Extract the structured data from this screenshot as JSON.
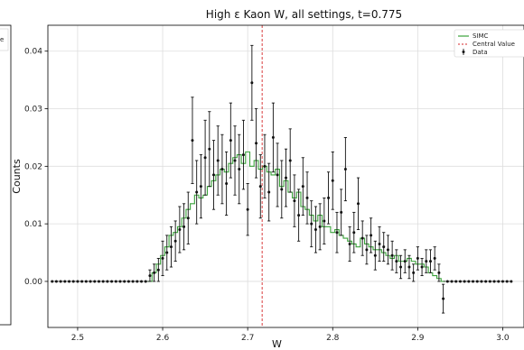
{
  "chart_data": {
    "type": "line",
    "title": "High ε Kaon W, all settings, t=0.775",
    "xlabel": "W",
    "ylabel": "Counts",
    "xlim": [
      2.465,
      3.025
    ],
    "ylim": [
      -0.008,
      0.0445
    ],
    "x_ticks": [
      2.5,
      2.6,
      2.7,
      2.8,
      2.9,
      3.0
    ],
    "x_tick_labels": [
      "2.5",
      "2.6",
      "2.7",
      "2.8",
      "2.9",
      "3.0"
    ],
    "y_ticks": [
      0.0,
      0.01,
      0.02,
      0.03,
      0.04
    ],
    "y_tick_labels": [
      "0.00",
      "0.01",
      "0.02",
      "0.03",
      "0.04"
    ],
    "grid": true,
    "legend_position": "top-right",
    "central_value": 2.717,
    "colors": {
      "simc": "#3aa23a",
      "data": "#111111",
      "central": "#d62728",
      "grid": "#dddddd"
    },
    "series": [
      {
        "name": "SIMC",
        "kind": "step",
        "x": [
          2.585,
          2.59,
          2.595,
          2.6,
          2.605,
          2.61,
          2.615,
          2.62,
          2.625,
          2.63,
          2.635,
          2.64,
          2.645,
          2.65,
          2.655,
          2.66,
          2.665,
          2.67,
          2.675,
          2.68,
          2.685,
          2.69,
          2.695,
          2.7,
          2.705,
          2.71,
          2.715,
          2.72,
          2.725,
          2.73,
          2.735,
          2.74,
          2.745,
          2.75,
          2.755,
          2.76,
          2.765,
          2.77,
          2.775,
          2.78,
          2.785,
          2.79,
          2.795,
          2.8,
          2.805,
          2.81,
          2.815,
          2.82,
          2.825,
          2.83,
          2.835,
          2.84,
          2.845,
          2.85,
          2.855,
          2.86,
          2.865,
          2.87,
          2.875,
          2.88,
          2.885,
          2.89,
          2.895,
          2.9,
          2.905,
          2.91,
          2.915,
          2.92,
          2.925,
          2.93
        ],
        "values": [
          0.0,
          0.0015,
          0.003,
          0.0045,
          0.006,
          0.008,
          0.0085,
          0.0095,
          0.011,
          0.0125,
          0.0135,
          0.015,
          0.0145,
          0.015,
          0.0165,
          0.0175,
          0.0185,
          0.0195,
          0.019,
          0.0205,
          0.0215,
          0.022,
          0.0205,
          0.0225,
          0.02,
          0.021,
          0.0195,
          0.02,
          0.019,
          0.0185,
          0.0195,
          0.0165,
          0.0175,
          0.0155,
          0.0145,
          0.0155,
          0.013,
          0.0125,
          0.0115,
          0.0105,
          0.0115,
          0.0095,
          0.0095,
          0.0085,
          0.009,
          0.008,
          0.0075,
          0.007,
          0.0065,
          0.006,
          0.0075,
          0.0065,
          0.006,
          0.0055,
          0.0055,
          0.005,
          0.0045,
          0.004,
          0.0045,
          0.0035,
          0.0035,
          0.004,
          0.0035,
          0.003,
          0.003,
          0.0025,
          0.0015,
          0.001,
          0.0005,
          0.0
        ]
      },
      {
        "name": "Central Value",
        "kind": "vline",
        "x": 2.717
      },
      {
        "name": "Data",
        "kind": "errorbar",
        "x": [
          2.47,
          2.475,
          2.48,
          2.485,
          2.49,
          2.495,
          2.5,
          2.505,
          2.51,
          2.515,
          2.52,
          2.525,
          2.53,
          2.535,
          2.54,
          2.545,
          2.55,
          2.555,
          2.56,
          2.565,
          2.57,
          2.575,
          2.58,
          2.585,
          2.59,
          2.595,
          2.6,
          2.605,
          2.61,
          2.615,
          2.62,
          2.625,
          2.63,
          2.635,
          2.64,
          2.645,
          2.65,
          2.655,
          2.66,
          2.665,
          2.67,
          2.675,
          2.68,
          2.685,
          2.69,
          2.695,
          2.7,
          2.705,
          2.71,
          2.715,
          2.72,
          2.725,
          2.73,
          2.735,
          2.74,
          2.745,
          2.75,
          2.755,
          2.76,
          2.765,
          2.77,
          2.775,
          2.78,
          2.785,
          2.79,
          2.795,
          2.8,
          2.805,
          2.81,
          2.815,
          2.82,
          2.825,
          2.83,
          2.835,
          2.84,
          2.845,
          2.85,
          2.855,
          2.86,
          2.865,
          2.87,
          2.875,
          2.88,
          2.885,
          2.89,
          2.895,
          2.9,
          2.905,
          2.91,
          2.915,
          2.92,
          2.925,
          2.93,
          2.935,
          2.94,
          2.945,
          2.95,
          2.955,
          2.96,
          2.965,
          2.97,
          2.975,
          2.98,
          2.985,
          2.99,
          2.995,
          3.0,
          3.005,
          3.01
        ],
        "values": [
          0,
          0,
          0,
          0,
          0,
          0,
          0,
          0,
          0,
          0,
          0,
          0,
          0,
          0,
          0,
          0,
          0,
          0,
          0,
          0,
          0,
          0,
          0,
          0.001,
          0.0015,
          0.002,
          0.004,
          0.005,
          0.006,
          0.007,
          0.009,
          0.0095,
          0.011,
          0.0245,
          0.0155,
          0.0165,
          0.0215,
          0.023,
          0.0185,
          0.021,
          0.0195,
          0.017,
          0.0245,
          0.021,
          0.0195,
          0.022,
          0.0125,
          0.0345,
          0.024,
          0.0165,
          0.02,
          0.0155,
          0.025,
          0.0185,
          0.016,
          0.018,
          0.021,
          0.014,
          0.0115,
          0.0165,
          0.0145,
          0.01,
          0.009,
          0.0095,
          0.0105,
          0.0145,
          0.0175,
          0.0085,
          0.012,
          0.0195,
          0.0065,
          0.0085,
          0.0135,
          0.0075,
          0.0055,
          0.008,
          0.0045,
          0.0065,
          0.006,
          0.0055,
          0.0045,
          0.0035,
          0.0025,
          0.0035,
          0.0025,
          0.0015,
          0.004,
          0.0025,
          0.0035,
          0.0035,
          0.004,
          0.0015,
          -0.003,
          0,
          0,
          0,
          0,
          0,
          0,
          0,
          0,
          0,
          0,
          0,
          0,
          0,
          0,
          0,
          0
        ],
        "errors": [
          0,
          0,
          0,
          0,
          0,
          0,
          0,
          0,
          0,
          0,
          0,
          0,
          0,
          0,
          0,
          0,
          0,
          0,
          0,
          0,
          0,
          0,
          0,
          0.001,
          0.0015,
          0.002,
          0.003,
          0.003,
          0.0035,
          0.0035,
          0.004,
          0.004,
          0.0045,
          0.0075,
          0.0055,
          0.0055,
          0.0065,
          0.0065,
          0.006,
          0.006,
          0.006,
          0.0055,
          0.0065,
          0.006,
          0.006,
          0.006,
          0.0045,
          0.0065,
          0.006,
          0.0055,
          0.0055,
          0.005,
          0.006,
          0.0055,
          0.005,
          0.005,
          0.0055,
          0.0045,
          0.0045,
          0.005,
          0.0045,
          0.004,
          0.004,
          0.004,
          0.004,
          0.0045,
          0.005,
          0.0035,
          0.004,
          0.0055,
          0.003,
          0.0035,
          0.0045,
          0.003,
          0.0025,
          0.003,
          0.0025,
          0.003,
          0.0025,
          0.0025,
          0.0025,
          0.002,
          0.002,
          0.002,
          0.002,
          0.0015,
          0.002,
          0.0015,
          0.002,
          0.002,
          0.002,
          0.0015,
          0.0025,
          0,
          0,
          0,
          0,
          0,
          0,
          0,
          0,
          0,
          0,
          0,
          0,
          0,
          0,
          0,
          0
        ]
      }
    ],
    "left_panel_text": "e"
  }
}
